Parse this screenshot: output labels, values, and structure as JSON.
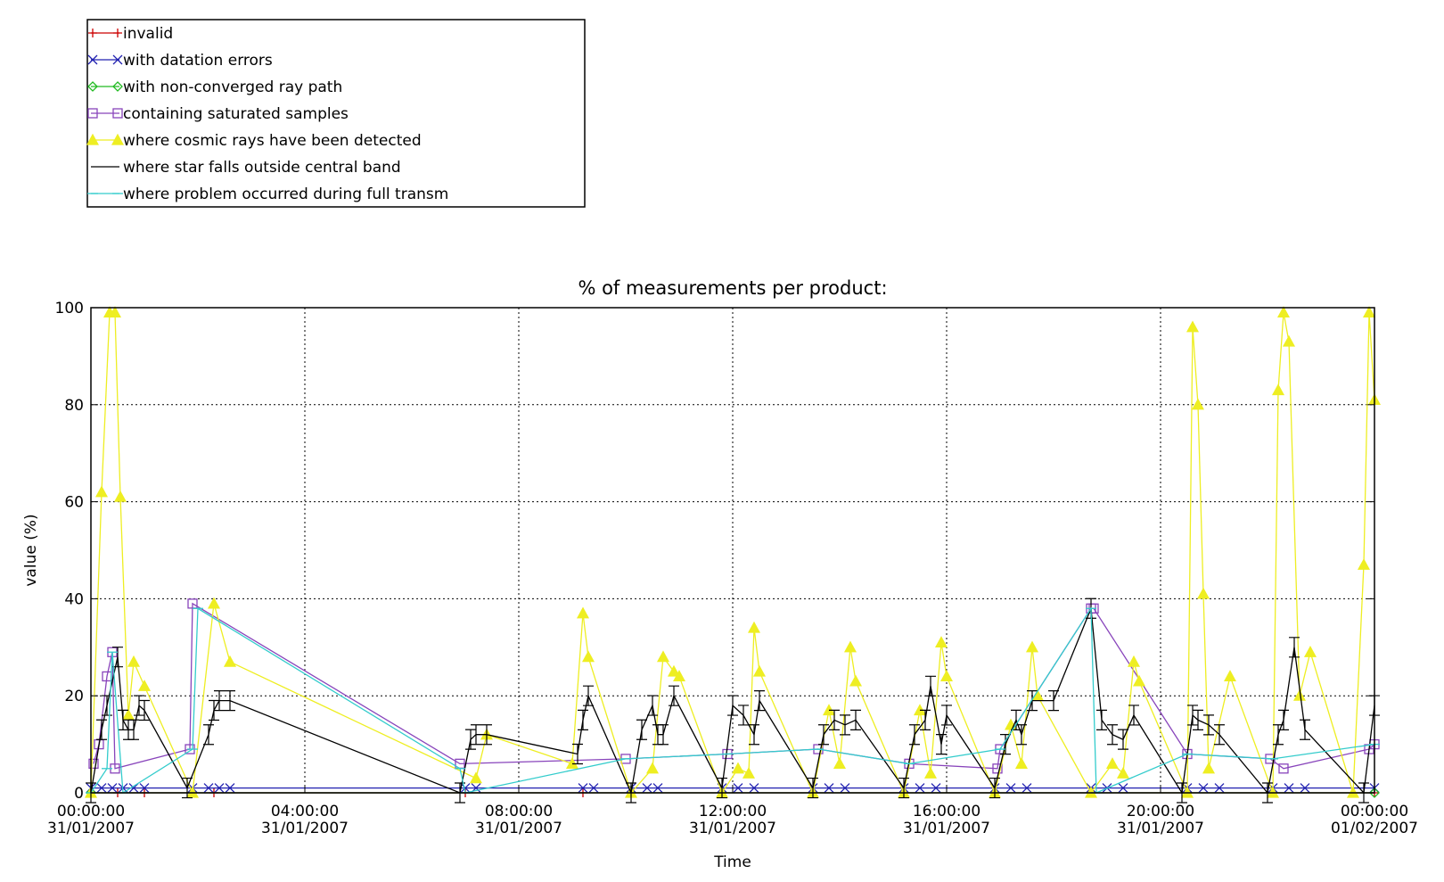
{
  "chart_data": {
    "type": "line",
    "title": "% of measurements per product:",
    "xlabel": "Time",
    "ylabel": "value (%)",
    "ylim": [
      0,
      100
    ],
    "yticks": [
      0,
      20,
      40,
      60,
      80,
      100
    ],
    "xlim": [
      "00:00:00 31/01/2007",
      "00:00:00 01/02/2007"
    ],
    "xticks": [
      {
        "time": "00:00:00",
        "date": "31/01/2007",
        "hour": 0
      },
      {
        "time": "04:00:00",
        "date": "31/01/2007",
        "hour": 4
      },
      {
        "time": "08:00:00",
        "date": "31/01/2007",
        "hour": 8
      },
      {
        "time": "12:00:00",
        "date": "31/01/2007",
        "hour": 12
      },
      {
        "time": "16:00:00",
        "date": "31/01/2007",
        "hour": 16
      },
      {
        "time": "20:00:00",
        "date": "31/01/2007",
        "hour": 20
      },
      {
        "time": "00:00:00",
        "date": "01/02/2007",
        "hour": 24
      }
    ],
    "grid": true,
    "legend_position": "top-left",
    "series": [
      {
        "name": "invalid",
        "color": "#cc0000",
        "marker": "plus",
        "x": [
          0.0,
          0.5,
          1.0,
          1.9,
          2.3,
          7.0,
          9.2,
          10.1,
          11.8,
          13.5,
          15.2,
          16.9,
          18.7,
          20.5,
          22.1,
          24.0
        ],
        "y": [
          0,
          0,
          0,
          0,
          0,
          0,
          0,
          0,
          0,
          0,
          0,
          0,
          0,
          0,
          0,
          0
        ]
      },
      {
        "name": "with datation errors",
        "color": "#2020b0",
        "marker": "x",
        "x": [
          0.0,
          0.2,
          0.4,
          0.6,
          0.8,
          1.0,
          1.9,
          2.2,
          2.4,
          2.6,
          7.0,
          7.2,
          9.2,
          9.4,
          10.1,
          10.4,
          10.6,
          11.8,
          12.1,
          12.4,
          13.5,
          13.8,
          14.1,
          15.2,
          15.5,
          15.8,
          16.9,
          17.2,
          17.5,
          18.7,
          19.0,
          19.3,
          20.5,
          20.8,
          21.1,
          22.1,
          22.4,
          22.7,
          24.0
        ],
        "y": [
          1,
          1,
          1,
          1,
          1,
          1,
          1,
          1,
          1,
          1,
          1,
          1,
          1,
          1,
          1,
          1,
          1,
          1,
          1,
          1,
          1,
          1,
          1,
          1,
          1,
          1,
          1,
          1,
          1,
          1,
          1,
          1,
          1,
          1,
          1,
          1,
          1,
          1,
          1
        ]
      },
      {
        "name": "with non-converged ray path",
        "color": "#22bb22",
        "marker": "diamond",
        "x": [
          0.0,
          24.0
        ],
        "y": [
          0,
          0
        ]
      },
      {
        "name": "containing saturated samples",
        "color": "#8844bb",
        "marker": "square",
        "x": [
          0.05,
          0.15,
          0.3,
          0.4,
          0.45,
          1.85,
          1.9,
          6.9,
          10.0,
          11.9,
          13.6,
          15.3,
          16.95,
          17.0,
          18.7,
          18.75,
          20.5,
          22.05,
          22.3,
          23.9,
          24.0
        ],
        "y": [
          6,
          10,
          24,
          29,
          5,
          9,
          39,
          6,
          7,
          8,
          9,
          6,
          5,
          9,
          38,
          38,
          8,
          7,
          5,
          9,
          10
        ]
      },
      {
        "name": "where cosmic rays have been detected",
        "color": "#eeee22",
        "marker": "triangle",
        "x": [
          0.0,
          0.2,
          0.35,
          0.45,
          0.55,
          0.7,
          0.8,
          1.0,
          1.9,
          2.3,
          2.6,
          7.2,
          7.4,
          9.0,
          9.2,
          9.3,
          10.1,
          10.5,
          10.7,
          10.9,
          11.0,
          11.8,
          12.1,
          12.3,
          12.4,
          12.5,
          13.5,
          13.8,
          14.0,
          14.2,
          14.3,
          15.2,
          15.5,
          15.7,
          15.9,
          16.0,
          16.9,
          17.2,
          17.4,
          17.6,
          17.7,
          18.7,
          19.1,
          19.3,
          19.5,
          19.6,
          20.5,
          20.6,
          20.7,
          20.8,
          20.9,
          21.3,
          22.1,
          22.2,
          22.3,
          22.4,
          22.6,
          22.8,
          23.6,
          23.8,
          23.9,
          24.0
        ],
        "y": [
          0,
          62,
          99,
          99,
          61,
          16,
          27,
          22,
          0,
          39,
          27,
          3,
          12,
          6,
          37,
          28,
          0,
          5,
          28,
          25,
          24,
          0,
          5,
          4,
          34,
          25,
          0,
          17,
          6,
          30,
          23,
          0,
          17,
          4,
          31,
          24,
          0,
          14,
          6,
          30,
          20,
          0,
          6,
          4,
          27,
          23,
          0,
          96,
          80,
          41,
          5,
          24,
          0,
          83,
          99,
          93,
          20,
          29,
          0,
          47,
          99,
          81
        ]
      },
      {
        "name": "where star falls outside central band",
        "color": "#000000",
        "marker": "errorbar",
        "x": [
          0.0,
          0.2,
          0.3,
          0.5,
          0.6,
          0.7,
          0.8,
          0.9,
          1.0,
          1.8,
          2.2,
          2.3,
          2.4,
          2.6,
          6.9,
          7.1,
          7.2,
          7.4,
          9.1,
          9.2,
          9.3,
          10.1,
          10.3,
          10.5,
          10.6,
          10.7,
          10.9,
          11.8,
          12.0,
          12.2,
          12.4,
          12.5,
          13.5,
          13.7,
          13.9,
          14.1,
          14.3,
          15.2,
          15.4,
          15.6,
          15.7,
          15.9,
          16.0,
          16.9,
          17.1,
          17.3,
          17.4,
          17.6,
          18.0,
          18.7,
          18.9,
          19.1,
          19.3,
          19.5,
          20.4,
          20.6,
          20.7,
          20.9,
          21.1,
          22.0,
          22.2,
          22.3,
          22.5,
          22.7,
          23.8,
          24.0
        ],
        "y": [
          0,
          13,
          18,
          28,
          15,
          13,
          13,
          18,
          17,
          1,
          12,
          17,
          19,
          19,
          0,
          11,
          12,
          12,
          8,
          15,
          20,
          0,
          13,
          18,
          12,
          12,
          20,
          1,
          18,
          16,
          12,
          19,
          1,
          12,
          15,
          14,
          15,
          1,
          12,
          15,
          22,
          10,
          16,
          1,
          10,
          15,
          12,
          19,
          19,
          38,
          15,
          12,
          11,
          16,
          0,
          16,
          15,
          14,
          12,
          0,
          12,
          15,
          30,
          13,
          0,
          18
        ]
      },
      {
        "name": "where problem occurred during full transm",
        "color": "#33cccc",
        "marker": "hline",
        "x": [
          0.0,
          0.3,
          0.4,
          0.6,
          1.9,
          2.0,
          6.9,
          7.0,
          10.0,
          11.9,
          13.6,
          15.3,
          17.0,
          18.7,
          18.8,
          20.5,
          22.1,
          24.0
        ],
        "y": [
          0,
          5,
          29,
          0,
          9,
          38,
          5,
          0,
          7,
          8,
          9,
          6,
          9,
          38,
          0,
          8,
          7,
          10
        ]
      }
    ]
  }
}
